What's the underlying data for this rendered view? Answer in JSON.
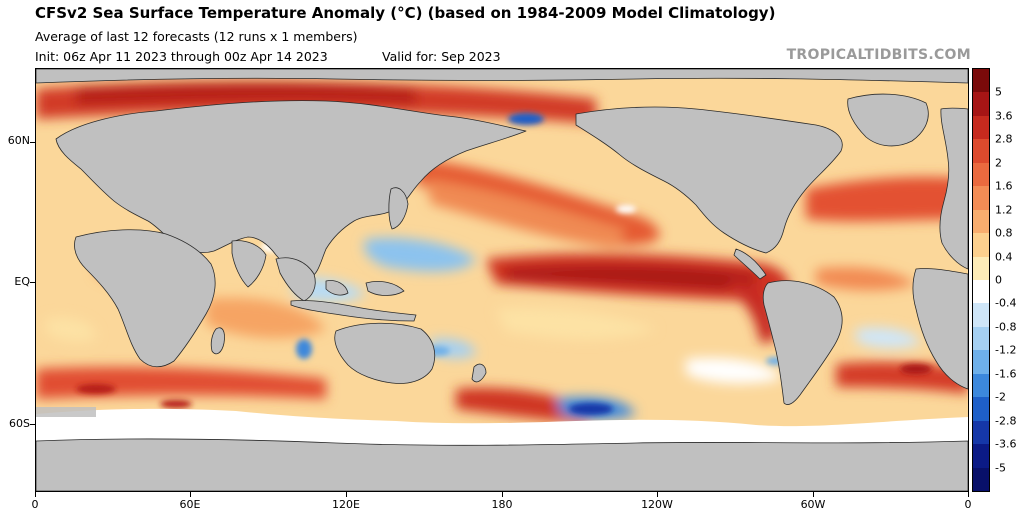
{
  "header": {
    "title": "CFSv2 Sea Surface Temperature Anomaly (°C) (based on 1984-2009 Model Climatology)",
    "subtitle": "Average of last 12 forecasts (12 runs x 1 members)",
    "init": "Init: 06z Apr 11 2023 through 00z Apr 14 2023",
    "valid": "Valid for: Sep 2023",
    "brand": "TROPICALTIDBITS.COM"
  },
  "axes": {
    "x_ticks": [
      "0",
      "60E",
      "120E",
      "180",
      "120W",
      "60W",
      "0"
    ],
    "y_ticks": [
      "60N",
      "EQ",
      "60S"
    ]
  },
  "colorbar": {
    "labels": [
      "5",
      "3.6",
      "2.8",
      "2",
      "1.6",
      "1.2",
      "0.8",
      "0.4",
      "0",
      "-0.4",
      "-0.8",
      "-1.2",
      "-1.6",
      "-2",
      "-2.8",
      "-3.6",
      "-5"
    ],
    "colors": [
      "#7a0a0a",
      "#a61515",
      "#c62a1e",
      "#dd4a2d",
      "#ea6a3f",
      "#f38c55",
      "#f8ad6e",
      "#fcd08e",
      "#fdecb8",
      "#ffffff",
      "#cfe6f8",
      "#a5d0f2",
      "#6eb0ea",
      "#3c88dc",
      "#1e5fc8",
      "#1537a8",
      "#0b1a86",
      "#08106a"
    ]
  },
  "map": {
    "land_color": "#c0c0c0",
    "background_color": "#fdfdfd",
    "region_labels": []
  }
}
